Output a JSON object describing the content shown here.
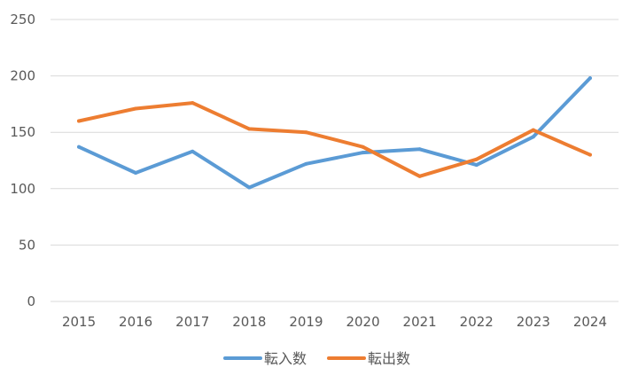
{
  "chart_data": {
    "type": "line",
    "categories": [
      "2015",
      "2016",
      "2017",
      "2018",
      "2019",
      "2020",
      "2021",
      "2022",
      "2023",
      "2024"
    ],
    "series": [
      {
        "name": "転入数",
        "color": "#5B9BD5",
        "values": [
          137,
          114,
          133,
          101,
          122,
          132,
          135,
          121,
          146,
          198
        ]
      },
      {
        "name": "転出数",
        "color": "#ED7D31",
        "values": [
          160,
          171,
          176,
          153,
          150,
          137,
          111,
          126,
          152,
          130
        ]
      }
    ],
    "ylim": [
      0,
      250
    ],
    "yticks": [
      0,
      50,
      100,
      150,
      200,
      250
    ],
    "grid": true,
    "legend": "bottom"
  }
}
